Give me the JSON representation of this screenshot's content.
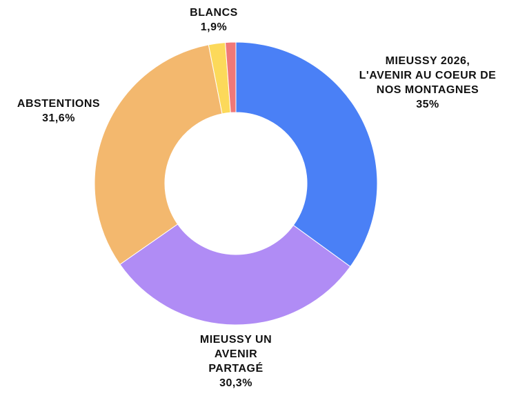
{
  "chart_data": {
    "type": "donut",
    "categories": [
      "MIEUSSY 2026, L'AVENIR AU COEUR DE NOS MONTAGNES",
      "MIEUSSY UN AVENIR PARTAGÉ",
      "ABSTENTIONS",
      "BLANCS",
      null
    ],
    "values": [
      35,
      30.3,
      31.6,
      1.9,
      1.2
    ],
    "value_labels": [
      "35%",
      "30,3%",
      "31,6%",
      "1,9%",
      null
    ],
    "colors": [
      "#4a80f6",
      "#b08cf5",
      "#f3b86e",
      "#fcd95a",
      "#f07878"
    ]
  }
}
